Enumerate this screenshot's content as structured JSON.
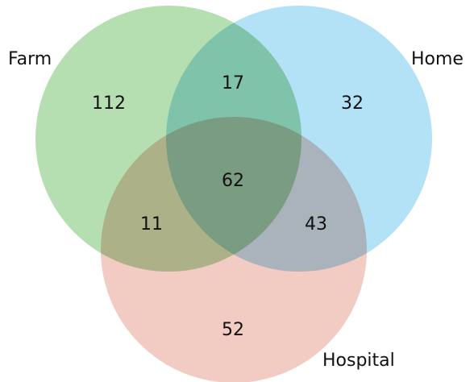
{
  "venn": {
    "sets": [
      {
        "name": "Farm",
        "color": "#b5dfb0"
      },
      {
        "name": "Home",
        "color": "#b3e1f6"
      },
      {
        "name": "Hospital",
        "color": "#f2cbc3"
      }
    ],
    "regions": {
      "farm_only": "112",
      "home_only": "32",
      "hospital_only": "52",
      "farm_home": "17",
      "farm_hospital": "11",
      "home_hospital": "43",
      "farm_home_hospital": "62"
    }
  }
}
